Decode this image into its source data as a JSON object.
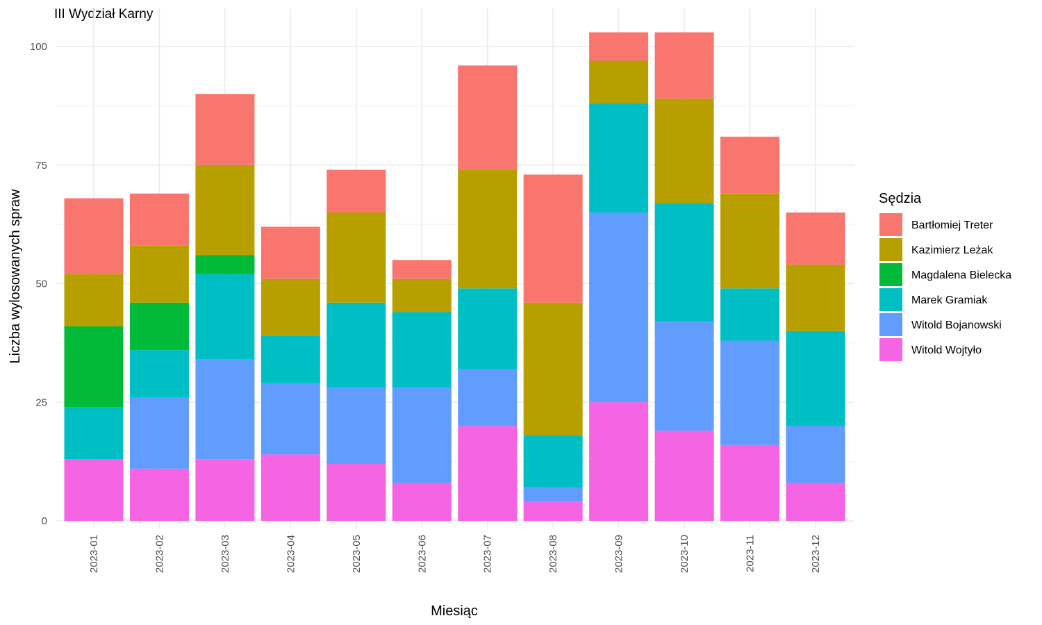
{
  "chart_data": {
    "type": "bar",
    "stacked": true,
    "title": "III Wydział Karny",
    "xlabel": "Miesiąc",
    "ylabel": "Liczba wylosowanych spraw",
    "ylim": [
      0,
      105
    ],
    "yticks": [
      0,
      25,
      50,
      75,
      100
    ],
    "grid": true,
    "legend_position": "right",
    "legend_title": "Sędzia",
    "categories": [
      "2023-01",
      "2023-02",
      "2023-03",
      "2023-04",
      "2023-05",
      "2023-06",
      "2023-07",
      "2023-08",
      "2023-09",
      "2023-10",
      "2023-11",
      "2023-12"
    ],
    "series": [
      {
        "name": "Bartłomiej Treter",
        "color": "#F8766D",
        "values": [
          16,
          11,
          15,
          11,
          9,
          4,
          22,
          27,
          6,
          14,
          12,
          11
        ]
      },
      {
        "name": "Kazimierz Leżak",
        "color": "#B79F00",
        "values": [
          11,
          12,
          19,
          12,
          19,
          7,
          25,
          28,
          9,
          22,
          20,
          14
        ]
      },
      {
        "name": "Magdalena Bielecka",
        "color": "#00BA38",
        "values": [
          17,
          10,
          4,
          0,
          0,
          0,
          0,
          0,
          0,
          0,
          0,
          0
        ]
      },
      {
        "name": "Marek Gramiak",
        "color": "#00BFC4",
        "values": [
          11,
          10,
          18,
          10,
          18,
          16,
          17,
          11,
          23,
          25,
          11,
          20
        ]
      },
      {
        "name": "Witold Bojanowski",
        "color": "#619CFF",
        "values": [
          0,
          15,
          21,
          15,
          16,
          20,
          12,
          3,
          40,
          23,
          22,
          12
        ]
      },
      {
        "name": "Witold Wojtyło",
        "color": "#F564E3",
        "values": [
          13,
          11,
          13,
          14,
          12,
          8,
          20,
          4,
          25,
          19,
          16,
          8
        ]
      }
    ]
  }
}
